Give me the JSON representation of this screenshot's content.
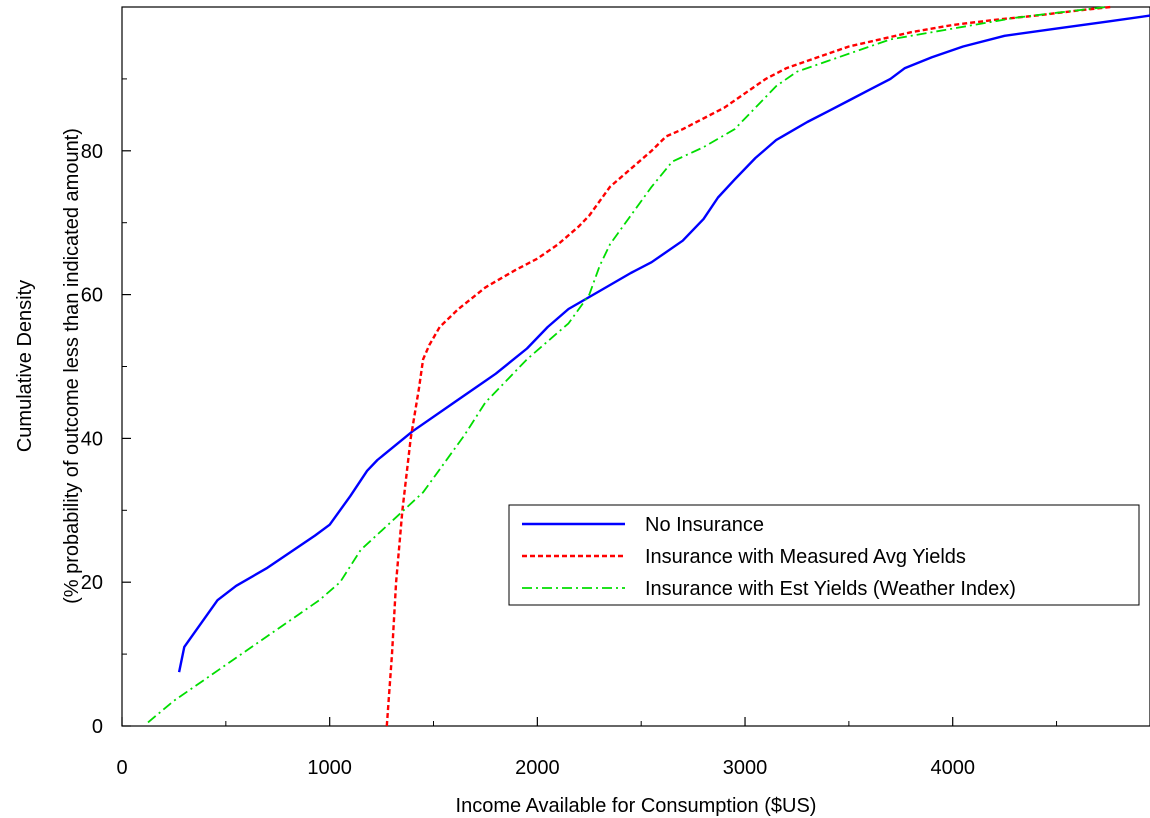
{
  "chart_data": {
    "type": "line",
    "xlabel": "Income Available for Consumption ($US)",
    "ylabel_lines": [
      "Cumulative Density",
      "(% probability of outcome less than indicated amount)"
    ],
    "xlim": [
      0,
      4950
    ],
    "ylim": [
      0,
      100
    ],
    "x_ticks": [
      0,
      1000,
      2000,
      3000,
      4000
    ],
    "x_tick_labels": [
      "0",
      "1000",
      "2000",
      "3000",
      "4000"
    ],
    "y_ticks": [
      0,
      20,
      40,
      60,
      80
    ],
    "y_tick_labels": [
      "0",
      "20",
      "40",
      "60",
      "80"
    ],
    "grid": false,
    "legend_position": "lower-right",
    "series": [
      {
        "name": "No Insurance",
        "color": "#0000ff",
        "style": "solid",
        "x": [
          275,
          300,
          460,
          550,
          700,
          930,
          1000,
          1100,
          1180,
          1230,
          1400,
          1600,
          1800,
          1950,
          2050,
          2150,
          2300,
          2450,
          2550,
          2700,
          2800,
          2870,
          2950,
          3050,
          3150,
          3180,
          3300,
          3400,
          3500,
          3600,
          3700,
          3770,
          3900,
          4050,
          4250,
          4500,
          4750,
          4950
        ],
        "y": [
          7.5,
          11,
          17.5,
          19.5,
          22,
          26.5,
          28,
          32,
          35.5,
          37,
          41,
          45,
          49,
          52.5,
          55.5,
          58,
          60.5,
          63,
          64.5,
          67.5,
          70.5,
          73.5,
          76,
          79,
          81.5,
          82,
          84,
          85.5,
          87,
          88.5,
          90,
          91.5,
          93,
          94.5,
          96,
          97,
          98,
          98.8
        ]
      },
      {
        "name": "Insurance with Measured Avg Yields",
        "color": "#ff0000",
        "style": "dashed",
        "x": [
          1275,
          1300,
          1320,
          1350,
          1390,
          1430,
          1450,
          1480,
          1530,
          1620,
          1750,
          1900,
          2000,
          2100,
          2200,
          2250,
          2300,
          2350,
          2450,
          2550,
          2620,
          2700,
          2800,
          2900,
          3000,
          3100,
          3200,
          3350,
          3500,
          3650,
          3800,
          4000,
          4200,
          4400,
          4600,
          4760
        ],
        "y": [
          0,
          10,
          20,
          30,
          40,
          47,
          51,
          53,
          55.5,
          58,
          61,
          63.5,
          65,
          67,
          69.5,
          71,
          73,
          75,
          77.5,
          80,
          82,
          83,
          84.5,
          86,
          88,
          90,
          91.5,
          93,
          94.5,
          95.5,
          96.5,
          97.5,
          98.2,
          98.8,
          99.5,
          100
        ]
      },
      {
        "name": "Insurance with Est Yields (Weather Index)",
        "color": "#00dd00",
        "style": "dashdot",
        "x": [
          125,
          250,
          400,
          550,
          700,
          850,
          950,
          1050,
          1150,
          1300,
          1450,
          1550,
          1650,
          1750,
          1850,
          1950,
          2050,
          2150,
          2250,
          2300,
          2350,
          2450,
          2550,
          2650,
          2800,
          2950,
          3050,
          3150,
          3250,
          3400,
          3550,
          3700,
          3900,
          4100,
          4300,
          4500,
          4740
        ],
        "y": [
          0.5,
          3.5,
          6.5,
          9.5,
          12.5,
          15.5,
          17.5,
          20,
          24.5,
          28.5,
          32.5,
          36.5,
          40.5,
          45,
          48,
          51,
          53.5,
          56,
          60,
          64,
          67,
          71,
          75,
          78.5,
          80.5,
          83,
          86,
          89,
          91,
          92.5,
          94,
          95.5,
          96.5,
          97.5,
          98.5,
          99.2,
          100
        ]
      }
    ]
  }
}
